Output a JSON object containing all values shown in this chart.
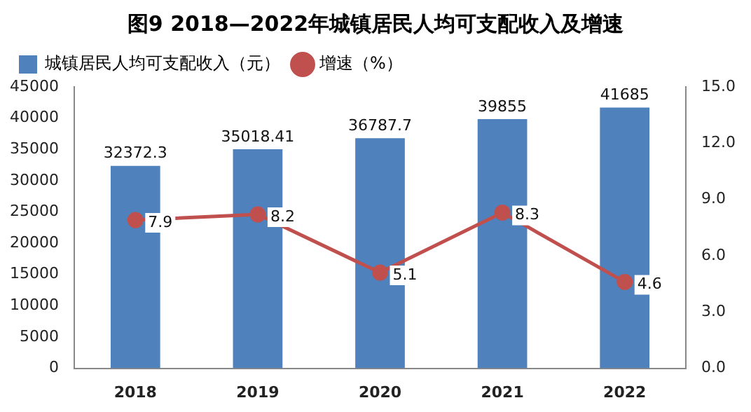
{
  "chart_data": {
    "type": "bar",
    "title": "图9   2018—2022年城镇居民人均可支配收入及增速",
    "categories": [
      "2018",
      "2019",
      "2020",
      "2021",
      "2022"
    ],
    "series": [
      {
        "name": "城镇居民人均可支配收入（元）",
        "color": "#4f81bd",
        "values": [
          32372.3,
          35018.41,
          36787.7,
          39855,
          41685
        ]
      },
      {
        "name": "增速（%）",
        "type": "line",
        "axis": "y2",
        "color": "#c0504d",
        "marker": "circle",
        "values": [
          7.9,
          8.2,
          5.1,
          8.3,
          4.6
        ]
      }
    ],
    "ylim": [
      0,
      45000
    ],
    "yticks": [
      0,
      5000,
      10000,
      15000,
      20000,
      25000,
      30000,
      35000,
      40000,
      45000
    ],
    "y2lim": [
      0,
      15
    ],
    "y2ticks": [
      {
        "value": 0,
        "label": "0.0"
      },
      {
        "value": 3,
        "label": "3.0"
      },
      {
        "value": 6,
        "label": "6.0"
      },
      {
        "value": 9,
        "label": "9.0"
      },
      {
        "value": 12,
        "label": "12.0"
      },
      {
        "value": 15,
        "label": "15.0"
      }
    ],
    "data_labels": true,
    "legend": "top left",
    "grid": false
  }
}
